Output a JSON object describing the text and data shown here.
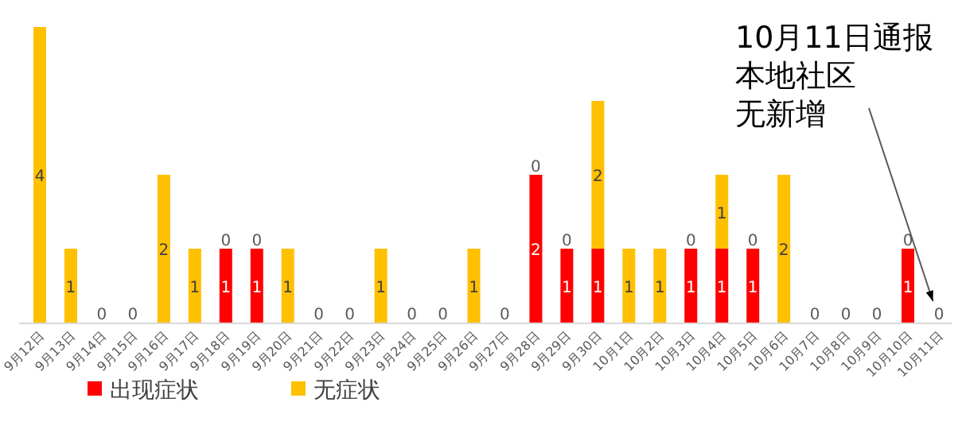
{
  "chart_data": {
    "type": "bar",
    "stacked": true,
    "data_labels": true,
    "legend": "bottom",
    "categories": [
      "9月12日",
      "9月13日",
      "9月14日",
      "9月15日",
      "9月16日",
      "9月17日",
      "9月18日",
      "9月19日",
      "9月20日",
      "9月21日",
      "9月22日",
      "9月23日",
      "9月24日",
      "9月25日",
      "9月26日",
      "9月27日",
      "9月28日",
      "9月29日",
      "9月30日",
      "10月1日",
      "10月2日",
      "10月3日",
      "10月4日",
      "10月5日",
      "10月6日",
      "10月7日",
      "10月8日",
      "10月9日",
      "10月10日",
      "10月11日"
    ],
    "series": [
      {
        "name": "出现症状",
        "color": "#ff0000",
        "values": [
          0,
          0,
          0,
          0,
          0,
          0,
          1,
          1,
          0,
          0,
          0,
          0,
          0,
          0,
          0,
          0,
          2,
          1,
          1,
          0,
          0,
          1,
          1,
          1,
          0,
          0,
          0,
          0,
          1,
          0
        ],
        "value_labels": [
          null,
          null,
          "0",
          "0",
          null,
          null,
          "1",
          "1",
          null,
          "0",
          "0",
          null,
          "0",
          "0",
          null,
          "0",
          "2",
          "1",
          "1",
          null,
          null,
          "1",
          "1",
          "1",
          null,
          "0",
          "0",
          "0",
          "1",
          "0"
        ]
      },
      {
        "name": "无症状",
        "color": "#ffc000",
        "values": [
          4,
          1,
          0,
          0,
          2,
          1,
          0,
          0,
          1,
          0,
          0,
          1,
          0,
          0,
          1,
          0,
          0,
          0,
          2,
          1,
          1,
          0,
          1,
          0,
          2,
          0,
          0,
          0,
          0,
          0
        ],
        "value_labels": [
          "4",
          "1",
          null,
          null,
          "2",
          "1",
          "0",
          "0",
          "1",
          null,
          null,
          "1",
          null,
          null,
          "1",
          null,
          "0",
          "0",
          "2",
          "1",
          "1",
          "0",
          "1",
          "0",
          "2",
          null,
          null,
          null,
          "0",
          null
        ]
      }
    ],
    "annotations": [
      "10月11日通报本地社区无新增"
    ]
  }
}
